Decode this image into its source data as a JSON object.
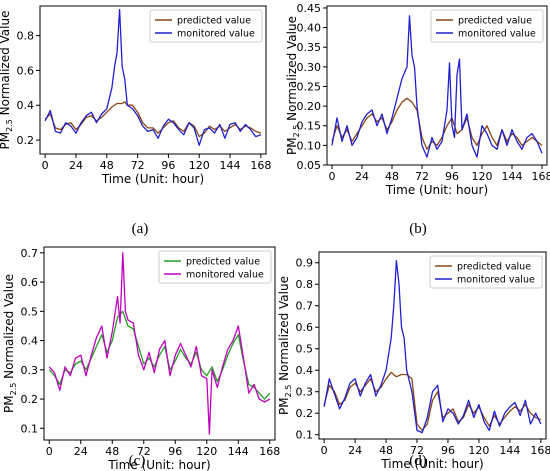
{
  "figure": {
    "chart_data": [
      {
        "type": "line",
        "panel_label": "(a)",
        "xlabel": "Time (Unit: hour)",
        "ylabel": "PM2.5 Normalized Value",
        "ylabel_main": "PM",
        "ylabel_sub": "2.5",
        "ylabel_rest": " Normalized Value",
        "xlim": [
          -4,
          172
        ],
        "ylim": [
          0.12,
          0.97
        ],
        "xticks": [
          0,
          24,
          48,
          72,
          96,
          120,
          144,
          168
        ],
        "yticks": [
          0.2,
          0.4,
          0.6,
          0.8
        ],
        "ytick_labels": [
          "0.2",
          "0.4",
          "0.6",
          "0.8"
        ],
        "legend": "top-right",
        "grid": false,
        "series": [
          {
            "name": "predicted value",
            "color": "#8B4513",
            "x": [
              0,
              4,
              8,
              12,
              16,
              20,
              24,
              28,
              32,
              36,
              40,
              44,
              48,
              52,
              56,
              60,
              62,
              64,
              68,
              72,
              76,
              80,
              84,
              88,
              92,
              96,
              100,
              104,
              108,
              112,
              116,
              120,
              124,
              128,
              132,
              136,
              140,
              144,
              148,
              152,
              156,
              160,
              164,
              168
            ],
            "y": [
              0.32,
              0.35,
              0.27,
              0.26,
              0.29,
              0.3,
              0.26,
              0.29,
              0.33,
              0.34,
              0.31,
              0.33,
              0.36,
              0.39,
              0.41,
              0.41,
              0.42,
              0.4,
              0.4,
              0.36,
              0.3,
              0.27,
              0.27,
              0.24,
              0.27,
              0.3,
              0.31,
              0.27,
              0.25,
              0.3,
              0.28,
              0.22,
              0.24,
              0.28,
              0.26,
              0.28,
              0.25,
              0.27,
              0.29,
              0.26,
              0.28,
              0.27,
              0.25,
              0.24
            ]
          },
          {
            "name": "monitored value",
            "color": "#2020D0",
            "x": [
              0,
              4,
              8,
              12,
              16,
              20,
              24,
              28,
              32,
              36,
              40,
              44,
              48,
              52,
              54,
              56,
              58,
              60,
              62,
              64,
              66,
              68,
              72,
              76,
              80,
              84,
              88,
              92,
              96,
              100,
              104,
              108,
              112,
              116,
              120,
              124,
              128,
              132,
              136,
              140,
              144,
              148,
              152,
              156,
              160,
              164,
              168
            ],
            "y": [
              0.31,
              0.37,
              0.25,
              0.24,
              0.3,
              0.28,
              0.24,
              0.3,
              0.34,
              0.36,
              0.3,
              0.35,
              0.38,
              0.5,
              0.62,
              0.7,
              0.95,
              0.62,
              0.55,
              0.4,
              0.39,
              0.38,
              0.34,
              0.28,
              0.25,
              0.26,
              0.21,
              0.28,
              0.32,
              0.3,
              0.26,
              0.23,
              0.3,
              0.27,
              0.17,
              0.26,
              0.27,
              0.24,
              0.29,
              0.21,
              0.29,
              0.3,
              0.25,
              0.29,
              0.26,
              0.22,
              0.23
            ]
          }
        ]
      },
      {
        "type": "line",
        "panel_label": "(b)",
        "xlabel": "Time (Unit: hour)",
        "ylabel": "PM2.5 Normalized Value",
        "ylabel_main": "PM",
        "ylabel_sub": "2.5",
        "ylabel_rest": " Normalized Value",
        "xlim": [
          -4,
          172
        ],
        "ylim": [
          0.05,
          0.455
        ],
        "xticks": [
          0,
          24,
          48,
          72,
          96,
          120,
          144,
          168
        ],
        "yticks": [
          0.05,
          0.1,
          0.15,
          0.2,
          0.25,
          0.3,
          0.35,
          0.4,
          0.45
        ],
        "ytick_labels": [
          "0.05",
          "0.10",
          "0.15",
          "0.20",
          "0.25",
          "0.30",
          "0.35",
          "0.40",
          "0.45"
        ],
        "legend": "top-right",
        "grid": false,
        "series": [
          {
            "name": "predicted value",
            "color": "#8B4513",
            "x": [
              0,
              4,
              8,
              12,
              16,
              20,
              24,
              28,
              32,
              36,
              40,
              44,
              48,
              52,
              56,
              60,
              64,
              68,
              72,
              76,
              80,
              84,
              88,
              92,
              96,
              100,
              104,
              108,
              112,
              116,
              120,
              124,
              128,
              132,
              136,
              140,
              144,
              148,
              152,
              156,
              160,
              164,
              168
            ],
            "y": [
              0.11,
              0.15,
              0.12,
              0.14,
              0.11,
              0.13,
              0.15,
              0.17,
              0.18,
              0.16,
              0.17,
              0.14,
              0.16,
              0.19,
              0.21,
              0.22,
              0.21,
              0.19,
              0.12,
              0.09,
              0.11,
              0.1,
              0.12,
              0.15,
              0.17,
              0.13,
              0.14,
              0.17,
              0.12,
              0.1,
              0.13,
              0.15,
              0.12,
              0.1,
              0.14,
              0.11,
              0.13,
              0.12,
              0.1,
              0.11,
              0.12,
              0.11,
              0.1
            ]
          },
          {
            "name": "monitored value",
            "color": "#2020D0",
            "x": [
              0,
              4,
              8,
              12,
              16,
              20,
              24,
              28,
              32,
              36,
              40,
              44,
              48,
              52,
              56,
              60,
              62,
              64,
              66,
              68,
              72,
              76,
              80,
              84,
              88,
              92,
              94,
              96,
              98,
              100,
              102,
              104,
              108,
              112,
              116,
              120,
              124,
              128,
              132,
              136,
              140,
              144,
              148,
              152,
              156,
              160,
              164,
              168
            ],
            "y": [
              0.1,
              0.17,
              0.11,
              0.15,
              0.1,
              0.12,
              0.16,
              0.18,
              0.19,
              0.15,
              0.18,
              0.13,
              0.17,
              0.22,
              0.27,
              0.3,
              0.43,
              0.33,
              0.3,
              0.2,
              0.1,
              0.07,
              0.12,
              0.09,
              0.11,
              0.19,
              0.31,
              0.15,
              0.12,
              0.28,
              0.32,
              0.14,
              0.18,
              0.1,
              0.07,
              0.15,
              0.13,
              0.1,
              0.09,
              0.14,
              0.1,
              0.14,
              0.11,
              0.09,
              0.12,
              0.13,
              0.11,
              0.08
            ]
          }
        ]
      },
      {
        "type": "line",
        "panel_label": "(c)",
        "xlabel": "Time (Unit: hour)",
        "ylabel": "PM2.5 Normalized Value",
        "ylabel_main": "PM",
        "ylabel_sub": "2.5",
        "ylabel_rest": " Normalized Value",
        "xlim": [
          -4,
          172
        ],
        "ylim": [
          0.06,
          0.72
        ],
        "xticks": [
          0,
          24,
          48,
          72,
          96,
          120,
          144,
          168
        ],
        "yticks": [
          0.1,
          0.2,
          0.3,
          0.4,
          0.5,
          0.6,
          0.7
        ],
        "ytick_labels": [
          "0.1",
          "0.2",
          "0.3",
          "0.4",
          "0.5",
          "0.6",
          "0.7"
        ],
        "legend": "top-right",
        "grid": false,
        "series": [
          {
            "name": "predicted value",
            "color": "#22A022",
            "x": [
              0,
              4,
              8,
              12,
              16,
              20,
              24,
              28,
              32,
              36,
              40,
              44,
              48,
              52,
              56,
              60,
              64,
              68,
              72,
              76,
              80,
              84,
              88,
              92,
              96,
              100,
              104,
              108,
              112,
              116,
              120,
              124,
              128,
              132,
              136,
              140,
              144,
              148,
              152,
              156,
              160,
              164,
              168
            ],
            "y": [
              0.3,
              0.28,
              0.25,
              0.3,
              0.29,
              0.32,
              0.33,
              0.3,
              0.34,
              0.38,
              0.42,
              0.36,
              0.4,
              0.48,
              0.5,
              0.45,
              0.44,
              0.38,
              0.32,
              0.34,
              0.31,
              0.35,
              0.38,
              0.3,
              0.33,
              0.37,
              0.34,
              0.32,
              0.36,
              0.3,
              0.28,
              0.31,
              0.26,
              0.3,
              0.35,
              0.39,
              0.42,
              0.33,
              0.25,
              0.24,
              0.22,
              0.2,
              0.22
            ]
          },
          {
            "name": "monitored value",
            "color": "#C000C0",
            "x": [
              0,
              4,
              8,
              12,
              16,
              20,
              24,
              28,
              32,
              36,
              40,
              44,
              48,
              52,
              54,
              56,
              58,
              60,
              64,
              68,
              72,
              76,
              80,
              84,
              88,
              92,
              96,
              100,
              104,
              108,
              112,
              116,
              120,
              122,
              124,
              128,
              132,
              136,
              140,
              144,
              148,
              152,
              156,
              160,
              164,
              168
            ],
            "y": [
              0.31,
              0.29,
              0.23,
              0.31,
              0.28,
              0.34,
              0.35,
              0.28,
              0.35,
              0.41,
              0.45,
              0.34,
              0.43,
              0.55,
              0.46,
              0.7,
              0.5,
              0.47,
              0.46,
              0.35,
              0.3,
              0.36,
              0.29,
              0.37,
              0.4,
              0.28,
              0.35,
              0.39,
              0.35,
              0.31,
              0.38,
              0.28,
              0.27,
              0.08,
              0.3,
              0.24,
              0.31,
              0.37,
              0.4,
              0.45,
              0.34,
              0.22,
              0.25,
              0.2,
              0.19,
              0.2
            ]
          }
        ]
      },
      {
        "type": "line",
        "panel_label": "(d)",
        "xlabel": "Time (Unit: hour)",
        "ylabel": "PM2.5 Normalized Value",
        "ylabel_main": "PM",
        "ylabel_sub": "2.5",
        "ylabel_rest": " Normalized Value",
        "xlim": [
          -4,
          172
        ],
        "ylim": [
          0.08,
          0.95
        ],
        "xticks": [
          0,
          24,
          48,
          72,
          96,
          120,
          144,
          168
        ],
        "yticks": [
          0.1,
          0.2,
          0.3,
          0.4,
          0.5,
          0.6,
          0.7,
          0.8,
          0.9
        ],
        "ytick_labels": [
          "0.1",
          "0.2",
          "0.3",
          "0.4",
          "0.5",
          "0.6",
          "0.7",
          "0.8",
          "0.9"
        ],
        "legend": "top-right",
        "grid": false,
        "series": [
          {
            "name": "predicted value",
            "color": "#8B4513",
            "x": [
              0,
              4,
              8,
              12,
              16,
              20,
              24,
              28,
              32,
              36,
              40,
              44,
              48,
              52,
              56,
              60,
              64,
              68,
              72,
              76,
              80,
              84,
              88,
              92,
              96,
              100,
              104,
              108,
              112,
              116,
              120,
              124,
              128,
              132,
              136,
              140,
              144,
              148,
              152,
              156,
              160,
              164,
              168
            ],
            "y": [
              0.24,
              0.33,
              0.3,
              0.24,
              0.26,
              0.32,
              0.34,
              0.3,
              0.33,
              0.36,
              0.3,
              0.32,
              0.36,
              0.39,
              0.37,
              0.38,
              0.38,
              0.36,
              0.15,
              0.12,
              0.15,
              0.26,
              0.3,
              0.18,
              0.2,
              0.22,
              0.16,
              0.18,
              0.24,
              0.2,
              0.23,
              0.18,
              0.14,
              0.19,
              0.15,
              0.18,
              0.21,
              0.23,
              0.21,
              0.24,
              0.2,
              0.18,
              0.17
            ]
          },
          {
            "name": "monitored value",
            "color": "#2020D0",
            "x": [
              0,
              4,
              8,
              12,
              16,
              20,
              24,
              28,
              32,
              36,
              40,
              44,
              48,
              52,
              54,
              56,
              58,
              60,
              62,
              64,
              66,
              68,
              72,
              76,
              80,
              84,
              88,
              92,
              96,
              100,
              104,
              108,
              112,
              116,
              120,
              124,
              128,
              132,
              136,
              140,
              144,
              148,
              152,
              156,
              160,
              164,
              168
            ],
            "y": [
              0.23,
              0.36,
              0.29,
              0.22,
              0.27,
              0.34,
              0.36,
              0.28,
              0.34,
              0.38,
              0.28,
              0.33,
              0.4,
              0.55,
              0.7,
              0.91,
              0.8,
              0.6,
              0.55,
              0.4,
              0.35,
              0.3,
              0.12,
              0.11,
              0.18,
              0.3,
              0.33,
              0.16,
              0.22,
              0.2,
              0.15,
              0.19,
              0.26,
              0.18,
              0.24,
              0.16,
              0.12,
              0.21,
              0.14,
              0.2,
              0.23,
              0.25,
              0.19,
              0.26,
              0.15,
              0.2,
              0.15
            ]
          }
        ]
      }
    ]
  }
}
